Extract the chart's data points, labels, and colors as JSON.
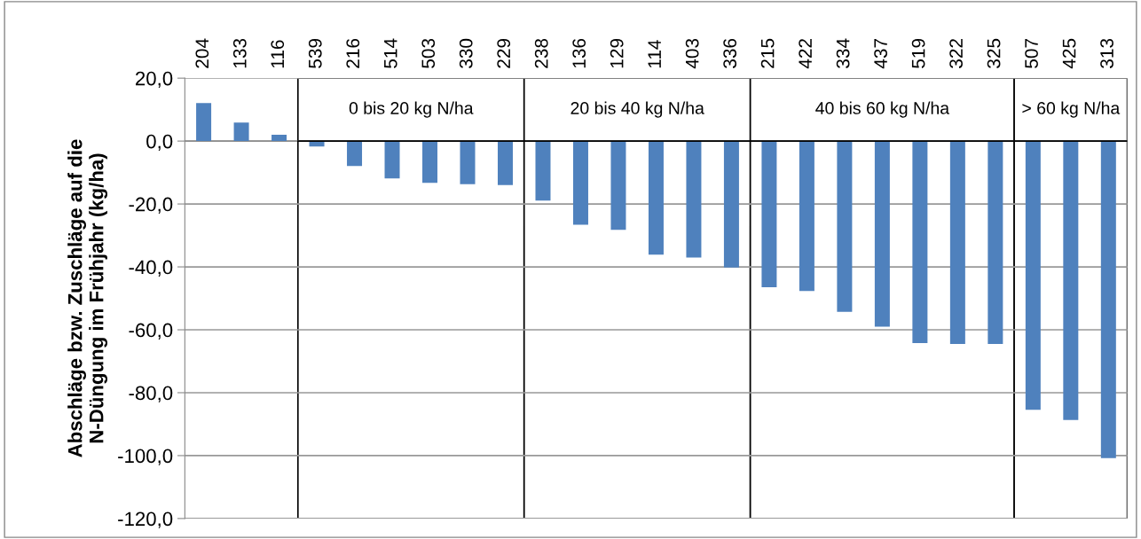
{
  "chart_data": {
    "type": "bar",
    "ylabel": "Abschläge bzw. Zuschläge auf die\nN-Düngung im Frühjahr (kg/ha)",
    "categories": [
      "204",
      "133",
      "116",
      "539",
      "216",
      "514",
      "503",
      "330",
      "229",
      "238",
      "136",
      "129",
      "114",
      "403",
      "336",
      "215",
      "422",
      "334",
      "437",
      "519",
      "322",
      "325",
      "507",
      "425",
      "313"
    ],
    "values": [
      12.1,
      5.9,
      2.0,
      -1.7,
      -7.9,
      -11.9,
      -13.3,
      -13.7,
      -14.0,
      -18.9,
      -26.6,
      -28.2,
      -36.1,
      -37.0,
      -40.2,
      -46.5,
      -47.7,
      -54.3,
      -59.0,
      -64.2,
      -64.5,
      -64.5,
      -85.4,
      -88.7,
      -100.8
    ],
    "color": "#4f81bd",
    "ylim": [
      -120,
      20
    ],
    "yticks": [
      {
        "value": -120,
        "label": "-120,0"
      },
      {
        "value": -100,
        "label": "-100,0"
      },
      {
        "value": -80,
        "label": "-80,0"
      },
      {
        "value": -60,
        "label": "-60,0"
      },
      {
        "value": -40,
        "label": "-40,0"
      },
      {
        "value": -20,
        "label": "-20,0"
      },
      {
        "value": 0,
        "label": "0,0"
      },
      {
        "value": 20,
        "label": "20,0"
      }
    ],
    "grid": "y",
    "bands": [
      {
        "axis": "x",
        "from": "539",
        "to": "229",
        "label": "0 bis 20 kg N/ha"
      },
      {
        "axis": "x",
        "from": "238",
        "to": "336",
        "label": "20 bis 40 kg N/ha"
      },
      {
        "axis": "x",
        "from": "215",
        "to": "325",
        "label": "40 bis 60 kg N/ha"
      },
      {
        "axis": "x",
        "from": "507",
        "to": "313",
        "label": "> 60 kg N/ha"
      }
    ]
  }
}
